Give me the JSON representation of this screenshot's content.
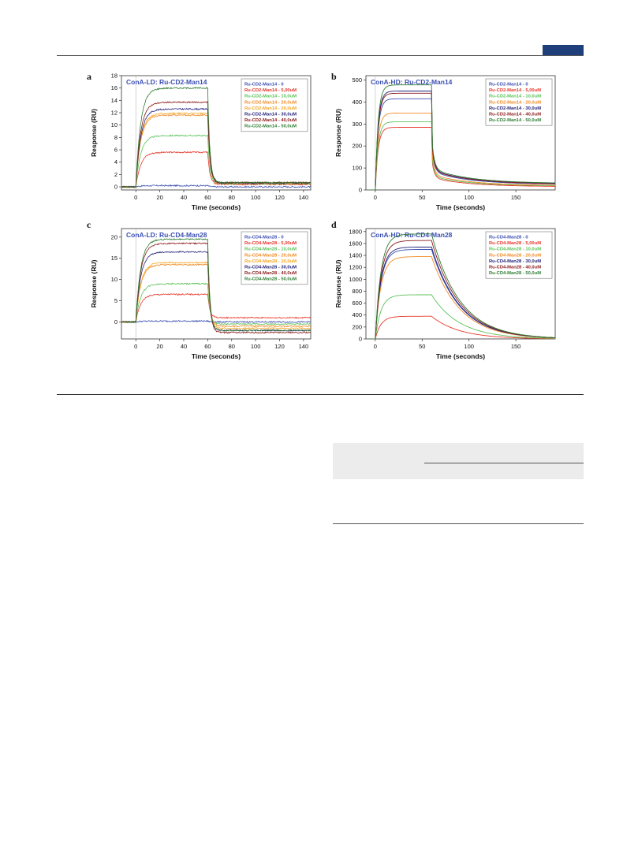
{
  "panels": {
    "a": "a",
    "b": "b",
    "c": "c",
    "d": "d"
  },
  "chart_data": [
    {
      "id": "a",
      "type": "line",
      "title": "ConA-LD: Ru-CD2-Man14",
      "xlabel": "Time (seconds)",
      "ylabel": "Response (RU)",
      "xlim": [
        -12,
        146
      ],
      "ylim": [
        -0.5,
        18
      ],
      "xticks": [
        0,
        20,
        40,
        60,
        80,
        100,
        120,
        140
      ],
      "yticks": [
        0,
        2,
        4,
        6,
        8,
        10,
        12,
        14,
        16,
        18
      ],
      "legend": "top-right",
      "noisy": true,
      "dissociation": {
        "t_end": 60,
        "tau_on": 4,
        "tau_off": 1.8
      },
      "series": [
        {
          "name": "Ru-CD2-Man14 - 0",
          "color": "#3b4fb3",
          "plateau": 0.2,
          "tail": 0.0
        },
        {
          "name": "Ru-CD2-Man14 - 5,00uM",
          "color": "#e8362b",
          "plateau": 5.6,
          "tail": 0.4
        },
        {
          "name": "Ru-CD2-Man14 - 10,0uM",
          "color": "#5cc15a",
          "plateau": 8.3,
          "tail": 0.5
        },
        {
          "name": "Ru-CD2-Man14 - 20,0uM",
          "color": "#f08a24",
          "plateau": 11.6,
          "tail": 0.6
        },
        {
          "name": "Ru-CD2-Man14 - 20,0uM",
          "color": "#f5a623",
          "plateau": 11.9,
          "tail": 0.6
        },
        {
          "name": "Ru-CD2-Man14 - 30,0uM",
          "color": "#22227a",
          "plateau": 12.6,
          "tail": 0.6
        },
        {
          "name": "Ru-CD2-Man14 - 40,0uM",
          "color": "#8b1a1a",
          "plateau": 13.7,
          "tail": 0.7
        },
        {
          "name": "Ru-CD2-Man14 - 50,0uM",
          "color": "#2e7d32",
          "plateau": 16.0,
          "tail": 0.7
        }
      ]
    },
    {
      "id": "b",
      "type": "line",
      "title": "ConA-HD: Ru-CD2-Man14",
      "xlabel": "Time (seconds)",
      "ylabel": "Response (RU)",
      "xlim": [
        -10,
        192
      ],
      "ylim": [
        0,
        520
      ],
      "xticks": [
        0,
        50,
        100,
        150
      ],
      "yticks": [
        0,
        100,
        200,
        300,
        400,
        500
      ],
      "legend": "top-right",
      "noisy": false,
      "dissociation": {
        "t_end": 60,
        "tau_on": 3,
        "tau_off": 2.5
      },
      "series": [
        {
          "name": "Ru-CD2-Man14 - 0",
          "color": "#3b4fb3",
          "plateau": 415,
          "tail": 25
        },
        {
          "name": "Ru-CD2-Man14 - 5,00uM",
          "color": "#e8362b",
          "plateau": 285,
          "tail": 15
        },
        {
          "name": "Ru-CD2-Man14 - 10,0uM",
          "color": "#5cc15a",
          "plateau": 310,
          "tail": 18
        },
        {
          "name": "Ru-CD2-Man14 - 20,0uM",
          "color": "#f08a24",
          "plateau": 350,
          "tail": 20
        },
        {
          "name": "Ru-CD2-Man14 - 30,0uM",
          "color": "#22227a",
          "plateau": 450,
          "tail": 28
        },
        {
          "name": "Ru-CD2-Man14 - 40,0uM",
          "color": "#8b1a1a",
          "plateau": 440,
          "tail": 27
        },
        {
          "name": "Ru-CD2-Man14 - 50,0uM",
          "color": "#2e7d32",
          "plateau": 478,
          "tail": 30
        }
      ]
    },
    {
      "id": "c",
      "type": "line",
      "title": "ConA-LD: Ru-CD4-Man28",
      "xlabel": "Time (seconds)",
      "ylabel": "Response (RU)",
      "xlim": [
        -12,
        146
      ],
      "ylim": [
        -4,
        22
      ],
      "xticks": [
        0,
        20,
        40,
        60,
        80,
        100,
        120,
        140
      ],
      "yticks": [
        0,
        5,
        10,
        15,
        20
      ],
      "legend": "top-right",
      "noisy": true,
      "dissociation": {
        "t_end": 60,
        "tau_on": 4,
        "tau_off": 1.8
      },
      "series": [
        {
          "name": "Ru-CD4-Man28 - 0",
          "color": "#3b4fb3",
          "plateau": 0.2,
          "tail": 0.0
        },
        {
          "name": "Ru-CD4-Man28 - 5,00uM",
          "color": "#e8362b",
          "plateau": 6.5,
          "tail": 1.0
        },
        {
          "name": "Ru-CD4-Man28 - 10,0uM",
          "color": "#5cc15a",
          "plateau": 9.0,
          "tail": -0.5
        },
        {
          "name": "Ru-CD4-Man28 - 20,0uM",
          "color": "#f08a24",
          "plateau": 13.5,
          "tail": -1.0
        },
        {
          "name": "Ru-CD4-Man28 - 20,0uM",
          "color": "#f5a623",
          "plateau": 14.0,
          "tail": -1.5
        },
        {
          "name": "Ru-CD4-Man28 - 30,0uM",
          "color": "#22227a",
          "plateau": 16.5,
          "tail": -2.0
        },
        {
          "name": "Ru-CD4-Man28 - 40,0uM",
          "color": "#8b1a1a",
          "plateau": 18.5,
          "tail": -2.5
        },
        {
          "name": "Ru-CD4-Man28 - 50,0uM",
          "color": "#2e7d32",
          "plateau": 19.5,
          "tail": -2.0
        }
      ]
    },
    {
      "id": "d",
      "type": "line",
      "title": "ConA-HD: Ru-CD4-Man28",
      "xlabel": "Time (seconds)",
      "ylabel": "Response (RU)",
      "xlim": [
        -10,
        192
      ],
      "ylim": [
        0,
        1850
      ],
      "xticks": [
        0,
        50,
        100,
        150
      ],
      "yticks": [
        0,
        200,
        400,
        600,
        800,
        1000,
        1200,
        1400,
        1600,
        1800
      ],
      "legend": "top-right",
      "noisy": false,
      "dissociation": {
        "t_end": 60,
        "tau_on": 6,
        "tau_off": 30
      },
      "series": [
        {
          "name": "Ru-CD4-Man28 - 0",
          "color": "#3b4fb3",
          "plateau": 1500,
          "tail": 0
        },
        {
          "name": "Ru-CD4-Man28 - 5,00uM",
          "color": "#e8362b",
          "plateau": 380,
          "tail": 0
        },
        {
          "name": "Ru-CD4-Man28 - 10,0uM",
          "color": "#5cc15a",
          "plateau": 740,
          "tail": 0
        },
        {
          "name": "Ru-CD4-Man28 - 20,0uM",
          "color": "#f08a24",
          "plateau": 1380,
          "tail": 0
        },
        {
          "name": "Ru-CD4-Man28 - 30,0uM",
          "color": "#22227a",
          "plateau": 1540,
          "tail": 0
        },
        {
          "name": "Ru-CD4-Man28 - 40,0uM",
          "color": "#8b1a1a",
          "plateau": 1650,
          "tail": 0
        },
        {
          "name": "Ru-CD4-Man28 - 50,0uM",
          "color": "#2e7d32",
          "plateau": 1760,
          "tail": 0
        }
      ]
    }
  ]
}
